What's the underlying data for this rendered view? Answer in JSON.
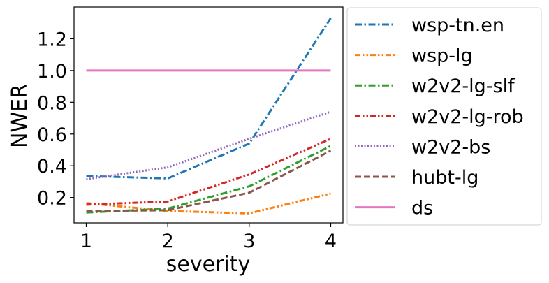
{
  "chart_data": {
    "type": "line",
    "title": "",
    "xlabel": "severity",
    "ylabel": "NWER",
    "x": [
      1,
      2,
      3,
      4
    ],
    "xlim": [
      0.85,
      4.15
    ],
    "ylim": [
      0.04,
      1.4
    ],
    "xticks": [
      1,
      2,
      3,
      4
    ],
    "xtick_labels": [
      "1",
      "2",
      "3",
      "4"
    ],
    "yticks": [
      0.2,
      0.4,
      0.6,
      0.8,
      1.0,
      1.2
    ],
    "ytick_labels": [
      "0.2",
      "0.4",
      "0.6",
      "0.8",
      "1.0",
      "1.2"
    ],
    "grid": false,
    "legend_position": "outside-right",
    "series": [
      {
        "name": "wsp-tn.en",
        "values": [
          0.335,
          0.32,
          0.54,
          1.33
        ],
        "color": "#1f77b4",
        "dash": "dashdot"
      },
      {
        "name": "wsp-lg",
        "values": [
          0.165,
          0.115,
          0.1,
          0.225
        ],
        "color": "#ff7f0e",
        "dash": "dashdotdot"
      },
      {
        "name": "w2v2-lg-slf",
        "values": [
          0.105,
          0.13,
          0.27,
          0.525
        ],
        "color": "#2ca02c",
        "dash": "dashdot"
      },
      {
        "name": "w2v2-lg-rob",
        "values": [
          0.155,
          0.175,
          0.345,
          0.57
        ],
        "color": "#d62728",
        "dash": "dashdotdot"
      },
      {
        "name": "w2v2-bs",
        "values": [
          0.315,
          0.39,
          0.57,
          0.74
        ],
        "color": "#9467bd",
        "dash": "dotted"
      },
      {
        "name": "hubt-lg",
        "values": [
          0.115,
          0.12,
          0.23,
          0.495
        ],
        "color": "#8c564b",
        "dash": "dashed"
      },
      {
        "name": "ds",
        "values": [
          1.0,
          1.0,
          1.0,
          1.0
        ],
        "color": "#e377c2",
        "dash": "solid"
      }
    ]
  }
}
